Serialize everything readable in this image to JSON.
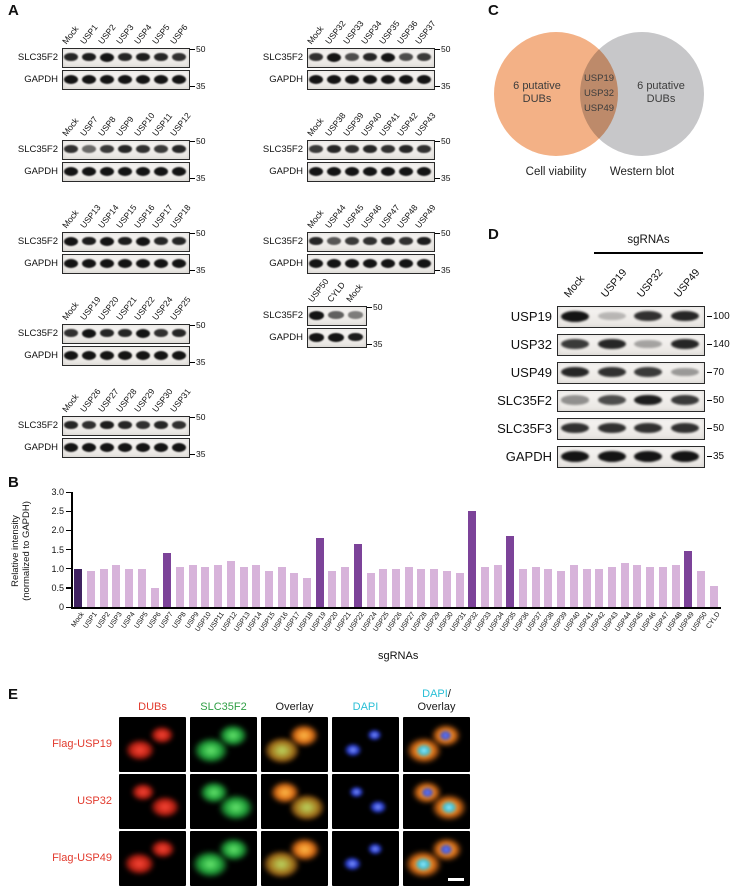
{
  "figure": {
    "panel_labels": {
      "A": "A",
      "B": "B",
      "C": "C",
      "D": "D",
      "E": "E"
    }
  },
  "panelA": {
    "groups": [
      {
        "side": "left",
        "index": 0,
        "lanes": [
          "Mock",
          "USP1",
          "USP2",
          "USP3",
          "USP4",
          "USP5",
          "USP6"
        ],
        "rows": [
          {
            "protein": "SLC35F2",
            "marker": "50",
            "bands": [
              0.9,
              0.95,
              1,
              0.9,
              0.95,
              0.9,
              0.85
            ]
          },
          {
            "protein": "GAPDH",
            "marker": "35",
            "bands": [
              1,
              1,
              1,
              1,
              1,
              1,
              1
            ]
          }
        ]
      },
      {
        "side": "left",
        "index": 1,
        "lanes": [
          "Mock",
          "USP7",
          "USP8",
          "USP9",
          "USP10",
          "USP11",
          "USP12"
        ],
        "rows": [
          {
            "protein": "SLC35F2",
            "marker": "50",
            "bands": [
              0.85,
              0.55,
              0.8,
              0.9,
              0.85,
              0.8,
              0.9
            ]
          },
          {
            "protein": "GAPDH",
            "marker": "35",
            "bands": [
              1,
              1,
              1,
              1,
              1,
              1,
              1
            ]
          }
        ]
      },
      {
        "side": "left",
        "index": 2,
        "lanes": [
          "Mock",
          "USP13",
          "USP14",
          "USP15",
          "USP16",
          "USP17",
          "USP18"
        ],
        "rows": [
          {
            "protein": "SLC35F2",
            "marker": "50",
            "bands": [
              1,
              0.95,
              1,
              0.95,
              1,
              0.9,
              0.9
            ]
          },
          {
            "protein": "GAPDH",
            "marker": "35",
            "bands": [
              1,
              1,
              1,
              1,
              1,
              1,
              1
            ]
          }
        ]
      },
      {
        "side": "left",
        "index": 3,
        "lanes": [
          "Mock",
          "USP19",
          "USP20",
          "USP21",
          "USP22",
          "USP24",
          "USP25"
        ],
        "rows": [
          {
            "protein": "SLC35F2",
            "marker": "50",
            "bands": [
              0.85,
              1,
              0.9,
              0.9,
              1,
              0.85,
              0.9
            ]
          },
          {
            "protein": "GAPDH",
            "marker": "35",
            "bands": [
              1,
              1,
              1,
              1,
              1,
              1,
              1
            ]
          }
        ]
      },
      {
        "side": "left",
        "index": 4,
        "lanes": [
          "Mock",
          "USP26",
          "USP27",
          "USP28",
          "USP29",
          "USP30",
          "USP31"
        ],
        "rows": [
          {
            "protein": "SLC35F2",
            "marker": "50",
            "bands": [
              0.9,
              0.85,
              0.95,
              0.9,
              0.85,
              0.9,
              0.85
            ]
          },
          {
            "protein": "GAPDH",
            "marker": "35",
            "bands": [
              1,
              1,
              1,
              1,
              1,
              1,
              1
            ]
          }
        ]
      },
      {
        "side": "right",
        "index": 0,
        "lanes": [
          "Mock",
          "USP32",
          "USP33",
          "USP34",
          "USP35",
          "USP36",
          "USP37"
        ],
        "rows": [
          {
            "protein": "SLC35F2",
            "marker": "50",
            "bands": [
              0.85,
              1,
              0.7,
              0.9,
              1,
              0.7,
              0.8
            ]
          },
          {
            "protein": "GAPDH",
            "marker": "35",
            "bands": [
              1,
              1,
              1,
              1,
              1,
              1,
              1
            ]
          }
        ]
      },
      {
        "side": "right",
        "index": 1,
        "lanes": [
          "Mock",
          "USP38",
          "USP39",
          "USP40",
          "USP41",
          "USP42",
          "USP43"
        ],
        "rows": [
          {
            "protein": "SLC35F2",
            "marker": "50",
            "bands": [
              0.8,
              0.9,
              0.85,
              0.9,
              0.85,
              0.9,
              0.85
            ]
          },
          {
            "protein": "GAPDH",
            "marker": "35",
            "bands": [
              1,
              1,
              1,
              1,
              1,
              1,
              1
            ]
          }
        ]
      },
      {
        "side": "right",
        "index": 2,
        "lanes": [
          "Mock",
          "USP44",
          "USP45",
          "USP46",
          "USP47",
          "USP48",
          "USP49"
        ],
        "rows": [
          {
            "protein": "SLC35F2",
            "marker": "50",
            "bands": [
              0.9,
              0.65,
              0.8,
              0.85,
              0.9,
              0.85,
              0.95
            ]
          },
          {
            "protein": "GAPDH",
            "marker": "35",
            "bands": [
              1,
              1,
              1,
              1,
              1,
              1,
              1
            ]
          }
        ]
      },
      {
        "side": "right",
        "index": 3,
        "lanes": [
          "USP50",
          "CYLD",
          "Mock"
        ],
        "rows": [
          {
            "protein": "SLC35F2",
            "marker": "50",
            "bands": [
              1,
              0.6,
              0.45
            ]
          },
          {
            "protein": "GAPDH",
            "marker": "35",
            "bands": [
              1,
              1,
              0.95
            ]
          }
        ]
      }
    ]
  },
  "panelC": {
    "left": {
      "label": "6 putative DUBs",
      "caption": "Cell viability",
      "color": "#f3b186"
    },
    "right": {
      "label": "6 putative DUBs",
      "caption": "Western blot",
      "color": "#c7c7c9"
    },
    "overlap": [
      "USP19",
      "USP32",
      "USP49"
    ]
  },
  "panelD": {
    "header": "sgRNAs",
    "lanes": [
      "Mock",
      "USP19",
      "USP32",
      "USP49"
    ],
    "rows": [
      {
        "protein": "USP19",
        "marker": "100",
        "bands": [
          1,
          0.15,
          0.85,
          0.9
        ]
      },
      {
        "protein": "USP32",
        "marker": "140",
        "bands": [
          0.8,
          0.9,
          0.25,
          0.9
        ]
      },
      {
        "protein": "USP49",
        "marker": "70",
        "bands": [
          0.9,
          0.85,
          0.8,
          0.3
        ]
      },
      {
        "protein": "SLC35F2",
        "marker": "50",
        "bands": [
          0.35,
          0.7,
          0.95,
          0.8
        ]
      },
      {
        "protein": "SLC35F3",
        "marker": "50",
        "bands": [
          0.85,
          0.85,
          0.85,
          0.85
        ]
      },
      {
        "protein": "GAPDH",
        "marker": "35",
        "bands": [
          1,
          1,
          1,
          1
        ]
      }
    ]
  },
  "chart_data": {
    "type": "bar",
    "title": "",
    "xlabel": "sgRNAs",
    "ylabel_line1": "Relative intensity",
    "ylabel_line2": "(normalized to GAPDH)",
    "ylim": [
      0,
      3.0
    ],
    "yticks": [
      0,
      0.5,
      1.0,
      1.5,
      2.0,
      2.5,
      3.0
    ],
    "ytick_labels": [
      "0",
      "0.5",
      "1.0",
      "1.5",
      "2.0",
      "2.5",
      "3.0"
    ],
    "grid": false,
    "legend": "none",
    "categories": [
      "Mock",
      "USP1",
      "USP2",
      "USP3",
      "USP4",
      "USP5",
      "USP6",
      "USP7",
      "USP8",
      "USP9",
      "USP10",
      "USP11",
      "USP12",
      "USP13",
      "USP14",
      "USP15",
      "USP16",
      "USP17",
      "USP18",
      "USP19",
      "USP20",
      "USP21",
      "USP22",
      "USP24",
      "USP25",
      "USP26",
      "USP27",
      "USP28",
      "USP29",
      "USP30",
      "USP31",
      "USP32",
      "USP33",
      "USP34",
      "USP35",
      "USP36",
      "USP37",
      "USP38",
      "USP39",
      "USP40",
      "USP41",
      "USP42",
      "USP43",
      "USP44",
      "USP45",
      "USP46",
      "USP47",
      "USP48",
      "USP49",
      "USP50",
      "CYLD"
    ],
    "values": [
      1.0,
      0.95,
      1.0,
      1.1,
      1.0,
      1.0,
      0.5,
      1.4,
      1.05,
      1.1,
      1.05,
      1.1,
      1.2,
      1.05,
      1.1,
      0.95,
      1.05,
      0.9,
      0.75,
      1.8,
      0.95,
      1.05,
      1.65,
      0.9,
      1.0,
      1.0,
      1.05,
      1.0,
      1.0,
      0.95,
      0.9,
      2.5,
      1.05,
      1.1,
      1.85,
      1.0,
      1.05,
      1.0,
      0.95,
      1.1,
      1.0,
      1.0,
      1.05,
      1.15,
      1.1,
      1.05,
      1.05,
      1.1,
      1.45,
      0.95,
      0.55
    ],
    "highlighted": [
      "USP7",
      "USP19",
      "USP22",
      "USP32",
      "USP35",
      "USP49"
    ],
    "colors": {
      "default": "#d7b3da",
      "highlight": "#7c4399",
      "mock": "#3f2160"
    }
  },
  "panelE": {
    "row_label_color": "#e23b2e",
    "rows": [
      {
        "label": "Flag-USP19"
      },
      {
        "label": "USP32"
      },
      {
        "label": "Flag-USP49"
      }
    ],
    "columns": [
      {
        "channel": "red",
        "header_lines": [
          [
            {
              "t": "DUBs",
              "c": "#e23b2e"
            }
          ]
        ]
      },
      {
        "channel": "green",
        "header_lines": [
          [
            {
              "t": "SLC35F2",
              "c": "#2f9e44"
            }
          ]
        ]
      },
      {
        "channel": "overlay",
        "header_lines": [
          [
            {
              "t": "Overlay",
              "c": "#1a1a1a"
            }
          ]
        ]
      },
      {
        "channel": "dapi",
        "header_lines": [
          [
            {
              "t": "DAPI",
              "c": "#29bfd6"
            }
          ]
        ]
      },
      {
        "channel": "merge",
        "header_lines": [
          [
            {
              "t": "DAPI",
              "c": "#29bfd6"
            },
            {
              "t": "/",
              "c": "#1a1a1a"
            }
          ],
          [
            {
              "t": "Overlay",
              "c": "#1a1a1a"
            }
          ]
        ]
      }
    ]
  }
}
